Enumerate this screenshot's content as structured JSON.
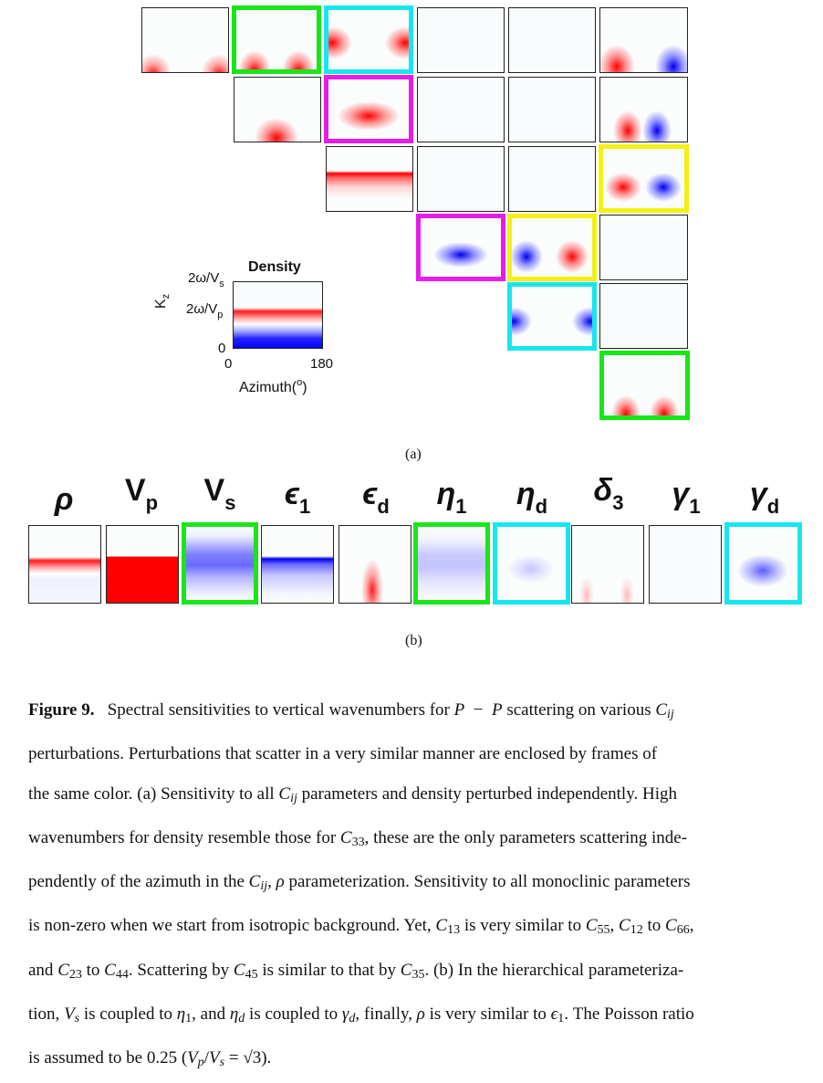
{
  "colors": {
    "green": "#19e619",
    "cyan": "#16e6f0",
    "magenta": "#e61de6",
    "yellow": "#f5f014",
    "red": "#ff0000",
    "blue": "#0000ee"
  },
  "panel_a": {
    "label": "(a)",
    "colorbar": {
      "title": "Density",
      "y_ticks": [
        "2ω/V",
        "s",
        "2ω/V",
        "p",
        "0"
      ],
      "ylabel_main": "K",
      "ylabel_sub": "z",
      "x_ticks": [
        "0",
        "180"
      ],
      "xlabel": "Azimuth(",
      "xlabel_sup": "o",
      "xlabel_end": ")"
    },
    "grid_frames": [
      "green",
      "cyan",
      "magenta",
      "yellow",
      "magenta",
      "yellow",
      "cyan",
      "green"
    ]
  },
  "panel_b": {
    "label": "(b)",
    "params": [
      {
        "sym": "ρ",
        "sub": "",
        "frame": ""
      },
      {
        "sym": "V",
        "sub": "p",
        "frame": ""
      },
      {
        "sym": "V",
        "sub": "s",
        "frame": "green"
      },
      {
        "sym": "ϵ",
        "sub": "1",
        "frame": ""
      },
      {
        "sym": "ϵ",
        "sub": "d",
        "frame": ""
      },
      {
        "sym": "η",
        "sub": "1",
        "frame": "green"
      },
      {
        "sym": "η",
        "sub": "d",
        "frame": "cyan"
      },
      {
        "sym": "δ",
        "sub": "3",
        "frame": ""
      },
      {
        "sym": "γ",
        "sub": "1",
        "frame": ""
      },
      {
        "sym": "γ",
        "sub": "d",
        "frame": "cyan"
      }
    ]
  },
  "caption": {
    "fig": "Figure  9.",
    "l1a": "Spectral sensitivities to vertical wavenumbers for ",
    "P": "P",
    "minus": "−",
    "l1b": " scattering on various ",
    "C": "C",
    "ij": "ij",
    "l2": "perturbations. Perturbations that scatter in a very similar manner are enclosed by frames of",
    "l3a": "the same color. (a) Sensitivity to all ",
    "l3b": " parameters and density perturbed independently. High",
    "l4a": "wavenumbers for density resemble those for ",
    "s33": "33",
    "l4b": ", these are the only parameters scattering inde-",
    "l5a": "pendently of the azimuth in the ",
    "rho": "ρ",
    "l5b": " parameterization. Sensitivity to all monoclinic parameters",
    "l6": "is non-zero when we start from isotropic background. Yet, ",
    "s13": "13",
    "l6b": " is very similar to ",
    "s55": "55",
    "s12": "12",
    "to": " to ",
    "s66": "66",
    "l7a": "and ",
    "s23": "23",
    "s44": "44",
    "l7b": ". Scattering by ",
    "s45": "45",
    "l7c": " is similar to that by ",
    "s35": "35",
    "l7d": ". (b) In the hierarchical parameteriza-",
    "l8a": "tion, ",
    "V": "V",
    "s": "s",
    "l8b": " is coupled to ",
    "eta": "η",
    "one": "1",
    "l8c": ", and ",
    "d": "d",
    "l8d": " is coupled to ",
    "gamma": "γ",
    "l8e": ", finally, ",
    "l8f": " is very similar to ",
    "eps": "ϵ",
    "l8g": ". The Poisson ratio",
    "l9a": "is assumed to be 0.25 (",
    "p": "p",
    "slash": "/",
    "eq": " = √3",
    "l9b": ")."
  }
}
